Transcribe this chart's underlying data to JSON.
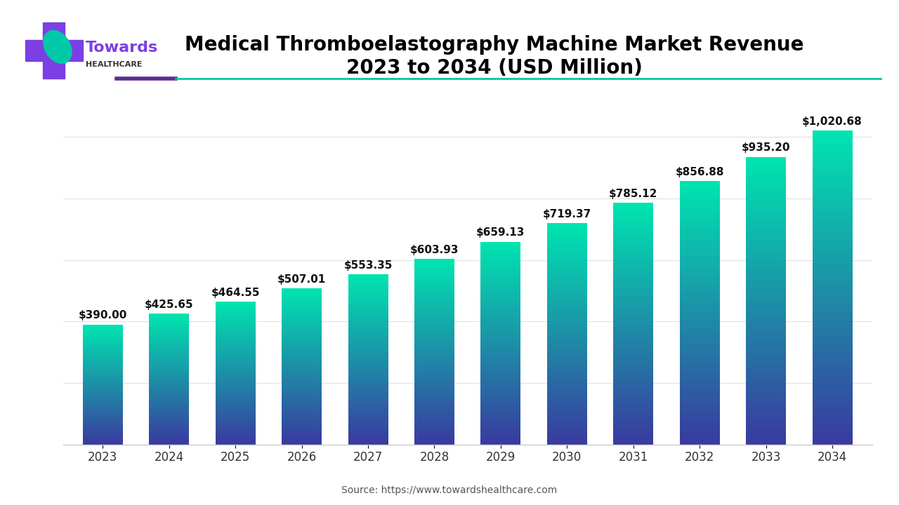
{
  "title": "Medical Thromboelastography Machine Market Revenue\n2023 to 2034 (USD Million)",
  "source": "Source: https://www.towardshealthcare.com",
  "years": [
    2023,
    2024,
    2025,
    2026,
    2027,
    2028,
    2029,
    2030,
    2031,
    2032,
    2033,
    2034
  ],
  "values": [
    390.0,
    425.65,
    464.55,
    507.01,
    553.35,
    603.93,
    659.13,
    719.37,
    785.12,
    856.88,
    935.2,
    1020.68
  ],
  "labels": [
    "$390.00",
    "$425.65",
    "$464.55",
    "$507.01",
    "$553.35",
    "$603.93",
    "$659.13",
    "$719.37",
    "$785.12",
    "$856.88",
    "$935.20",
    "$1,020.68"
  ],
  "bar_color_top": "#00e5b0",
  "bar_color_bottom": "#3a3aa0",
  "background_color": "#ffffff",
  "plot_bg_color": "#ffffff",
  "grid_color": "#e0e0e0",
  "title_color": "#000000",
  "label_color": "#111111",
  "tick_color": "#333333",
  "ylim": [
    0,
    1150
  ],
  "bar_width": 0.6,
  "title_fontsize": 20,
  "label_fontsize": 11,
  "tick_fontsize": 12,
  "source_fontsize": 10,
  "accent_purple": "#5b2d8e",
  "accent_teal": "#00c9a7",
  "logo_text_towards": "Towards",
  "logo_text_healthcare": "HEALTHCARE",
  "cross_color": "#7b3fe4",
  "leaf_color": "#00c9a7"
}
